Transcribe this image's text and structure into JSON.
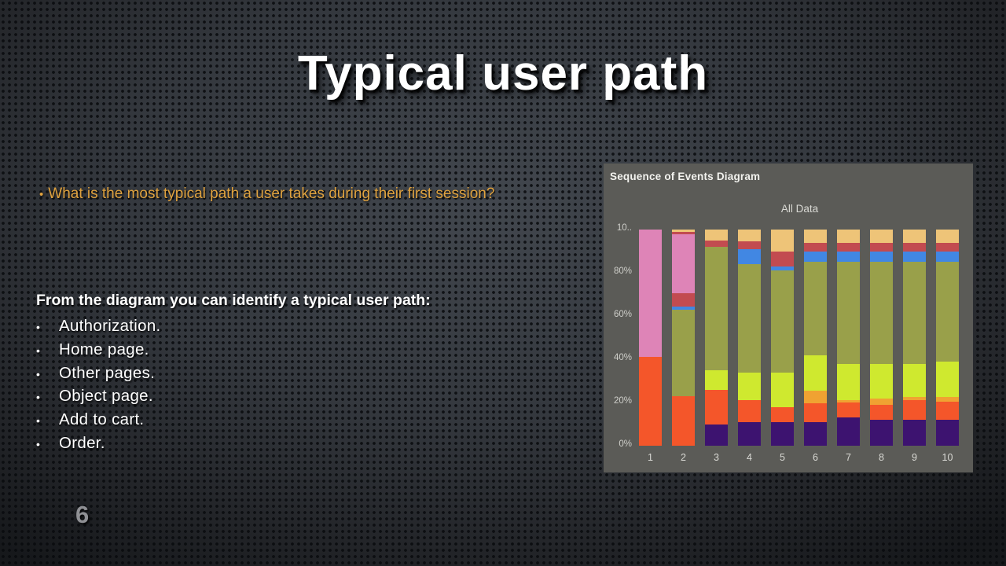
{
  "slide": {
    "title": "Typical user path",
    "page_number": "6",
    "question": {
      "bullet": "•",
      "text": "What is the most typical path a user takes during their first session?"
    },
    "list": {
      "heading": "From the diagram you can identify a typical user path:",
      "bullet": "•",
      "items": [
        "Authorization.",
        "Home page.",
        "Other pages.",
        "Object page.",
        "Add to cart.",
        "Order."
      ]
    },
    "colors": {
      "accent_text": "#dfa23f",
      "title_text": "#ffffff",
      "page_number_text": "#8f9094"
    }
  },
  "chart_data": {
    "type": "bar",
    "variant": "100%-stacked-vertical",
    "title": "Sequence of Events Diagram",
    "subtitle": "All Data",
    "xlabel": "",
    "ylabel": "",
    "ylim": [
      0,
      100
    ],
    "grid": false,
    "legend": "none",
    "y_ticks": [
      "10..",
      "80%",
      "60%",
      "40%",
      "20%",
      "0%"
    ],
    "categories": [
      "1",
      "2",
      "3",
      "4",
      "5",
      "6",
      "7",
      "8",
      "9",
      "10"
    ],
    "colors": {
      "purple": "#3d1370",
      "orange": "#f4562a",
      "amber": "#f0a232",
      "chartreuse": "#cfe92f",
      "olive": "#99a04a",
      "blue": "#4187e3",
      "red": "#c24b50",
      "pink": "#de84b7",
      "tan": "#eec478",
      "panel_bg": "#5b5b57"
    },
    "bars": [
      {
        "x": "1",
        "segments": [
          [
            "orange",
            41
          ],
          [
            "pink",
            59
          ]
        ]
      },
      {
        "x": "2",
        "segments": [
          [
            "orange",
            23
          ],
          [
            "olive",
            40
          ],
          [
            "blue",
            1.5
          ],
          [
            "red",
            6
          ],
          [
            "pink",
            27.5
          ],
          [
            "red",
            1
          ],
          [
            "tan",
            1
          ]
        ]
      },
      {
        "x": "3",
        "segments": [
          [
            "purple",
            10
          ],
          [
            "orange",
            16
          ],
          [
            "chartreuse",
            9
          ],
          [
            "olive",
            57
          ],
          [
            "red",
            3
          ],
          [
            "tan",
            5
          ]
        ]
      },
      {
        "x": "4",
        "segments": [
          [
            "purple",
            11
          ],
          [
            "orange",
            10
          ],
          [
            "chartreuse",
            13
          ],
          [
            "olive",
            50
          ],
          [
            "blue",
            7
          ],
          [
            "red",
            3.5
          ],
          [
            "tan",
            5.5
          ]
        ]
      },
      {
        "x": "5",
        "segments": [
          [
            "purple",
            11
          ],
          [
            "orange",
            7
          ],
          [
            "chartreuse",
            16
          ],
          [
            "olive",
            47
          ],
          [
            "blue",
            2
          ],
          [
            "red",
            7
          ],
          [
            "tan",
            10
          ]
        ]
      },
      {
        "x": "6",
        "segments": [
          [
            "purple",
            11
          ],
          [
            "orange",
            8.5
          ],
          [
            "amber",
            6
          ],
          [
            "chartreuse",
            16.5
          ],
          [
            "olive",
            43
          ],
          [
            "blue",
            5
          ],
          [
            "red",
            4
          ],
          [
            "tan",
            6
          ]
        ]
      },
      {
        "x": "7",
        "segments": [
          [
            "purple",
            13
          ],
          [
            "orange",
            7
          ],
          [
            "amber",
            1
          ],
          [
            "chartreuse",
            17
          ],
          [
            "olive",
            47
          ],
          [
            "blue",
            5
          ],
          [
            "red",
            4
          ],
          [
            "tan",
            6
          ]
        ]
      },
      {
        "x": "8",
        "segments": [
          [
            "purple",
            12
          ],
          [
            "orange",
            7
          ],
          [
            "amber",
            3
          ],
          [
            "chartreuse",
            16
          ],
          [
            "olive",
            47
          ],
          [
            "blue",
            5
          ],
          [
            "red",
            4
          ],
          [
            "tan",
            6
          ]
        ]
      },
      {
        "x": "9",
        "segments": [
          [
            "purple",
            12
          ],
          [
            "orange",
            9
          ],
          [
            "amber",
            1.5
          ],
          [
            "chartreuse",
            15.5
          ],
          [
            "olive",
            47
          ],
          [
            "blue",
            5
          ],
          [
            "red",
            4
          ],
          [
            "tan",
            6
          ]
        ]
      },
      {
        "x": "10",
        "segments": [
          [
            "purple",
            12
          ],
          [
            "orange",
            8.5
          ],
          [
            "amber",
            2
          ],
          [
            "chartreuse",
            16.5
          ],
          [
            "olive",
            46
          ],
          [
            "blue",
            5
          ],
          [
            "red",
            4
          ],
          [
            "tan",
            6
          ]
        ]
      }
    ]
  }
}
